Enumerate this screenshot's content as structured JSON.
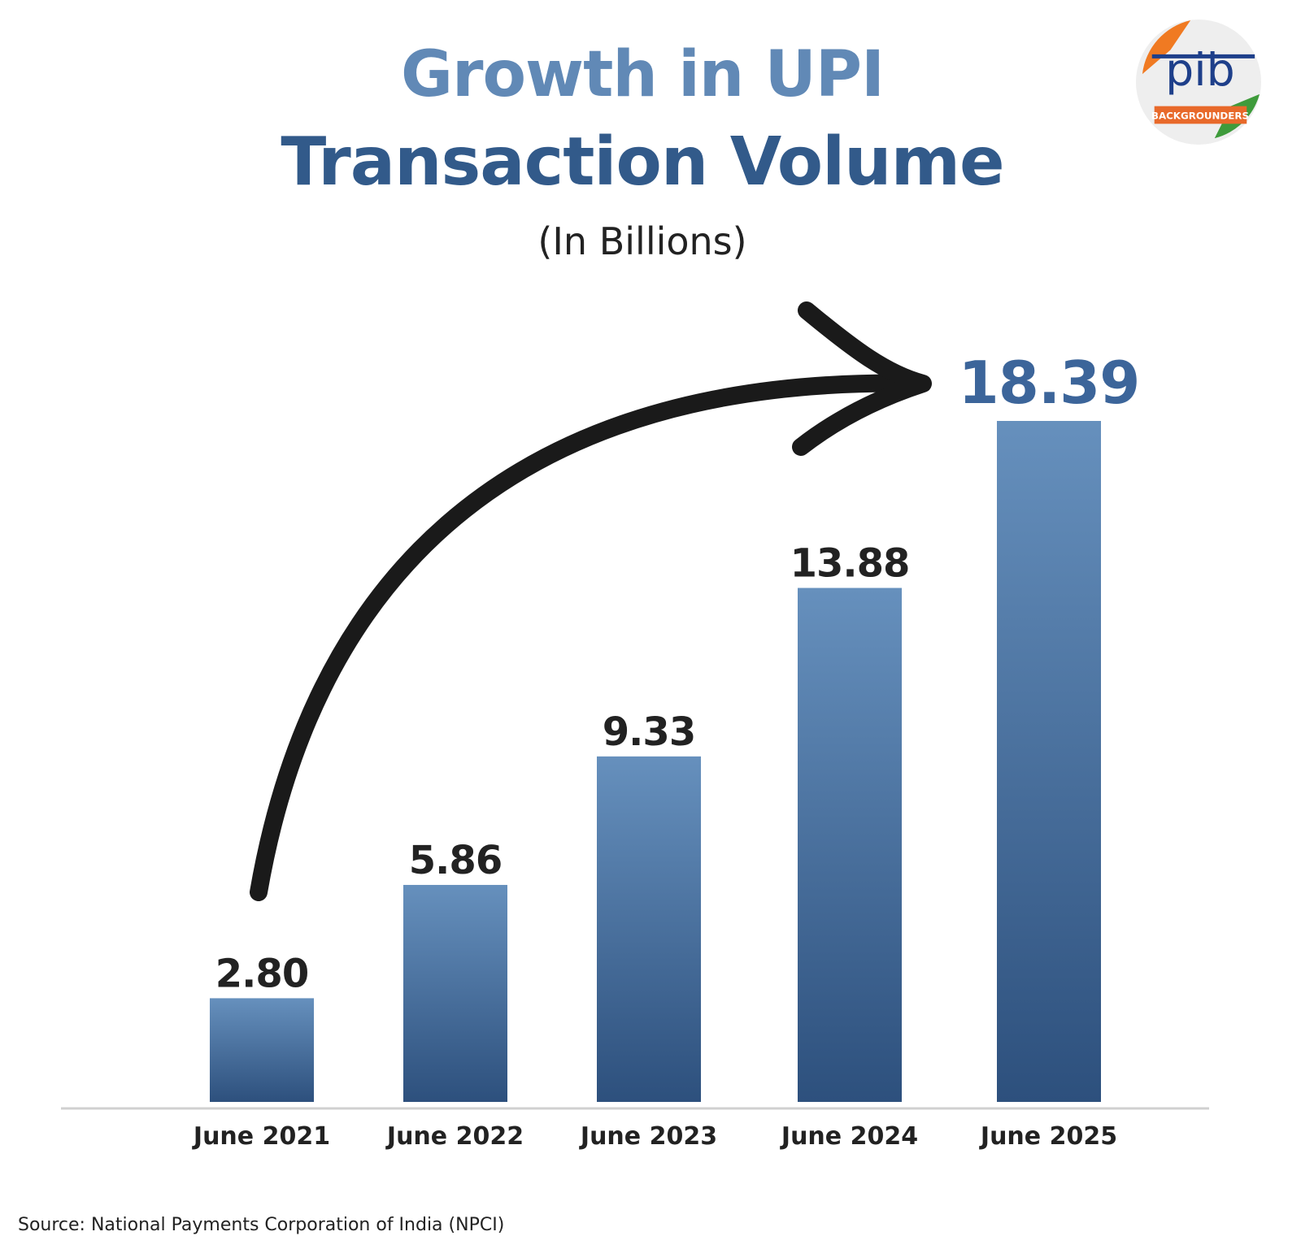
{
  "chart_data": {
    "type": "bar",
    "title": "Growth in UPI Transaction Volume",
    "title_line1": "Growth in UPI",
    "title_line2": "Transaction Volume",
    "subtitle": "(In Billions)",
    "categories": [
      "June 2021",
      "June 2022",
      "June 2023",
      "June 2024",
      "June 2025"
    ],
    "values": [
      2.8,
      5.86,
      9.33,
      13.88,
      18.39
    ],
    "value_labels": [
      "2.80",
      "5.86",
      "9.33",
      "13.88",
      "18.39"
    ],
    "ylim": [
      0,
      18.39
    ],
    "grid": false,
    "colors": {
      "bar_top": "#6690bd",
      "bar_bottom": "#2d507d",
      "label": "#222222",
      "highlight_label": "#3c659a",
      "arrow": "#1a1a1a"
    }
  },
  "source": "Source: National Payments Corporation of India (NPCI)",
  "logo": {
    "text": "pib",
    "badge": "BACKGROUNDERS"
  }
}
